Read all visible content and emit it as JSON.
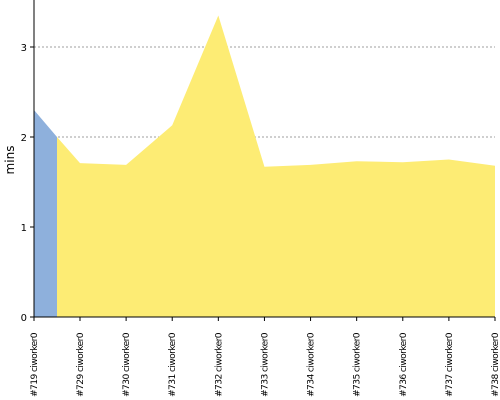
{
  "chart_data": {
    "type": "area",
    "title": "",
    "xlabel": "",
    "ylabel": "mins",
    "ylim": [
      0,
      3.5
    ],
    "yticks": [
      0,
      1,
      2,
      3
    ],
    "grid": true,
    "categories": [
      "#719 ciworker0",
      "#729 ciworker0",
      "#730 ciworker0",
      "#731 ciworker0",
      "#732 ciworker0",
      "#733 ciworker0",
      "#734 ciworker0",
      "#735 ciworker0",
      "#736 ciworker0",
      "#737 ciworker0",
      "#738 ciworker0"
    ],
    "series": [
      {
        "color": "#8eb0dc",
        "points": [
          {
            "x": "#719 ciworker0",
            "y": 2.3
          },
          {
            "x": "#719 ciworker0",
            "y": 2.0
          }
        ]
      },
      {
        "color": "#fdec74",
        "points": [
          {
            "x": "#719 ciworker0",
            "y": 2.0
          },
          {
            "x": "#729 ciworker0",
            "y": 1.71
          },
          {
            "x": "#730 ciworker0",
            "y": 1.69
          },
          {
            "x": "#731 ciworker0",
            "y": 2.13
          },
          {
            "x": "#732 ciworker0",
            "y": 3.35
          },
          {
            "x": "#733 ciworker0",
            "y": 1.67
          },
          {
            "x": "#734 ciworker0",
            "y": 1.69
          },
          {
            "x": "#735 ciworker0",
            "y": 1.73
          },
          {
            "x": "#736 ciworker0",
            "y": 1.72
          },
          {
            "x": "#737 ciworker0",
            "y": 1.75
          },
          {
            "x": "#738 ciworker0",
            "y": 1.68
          }
        ]
      }
    ]
  }
}
